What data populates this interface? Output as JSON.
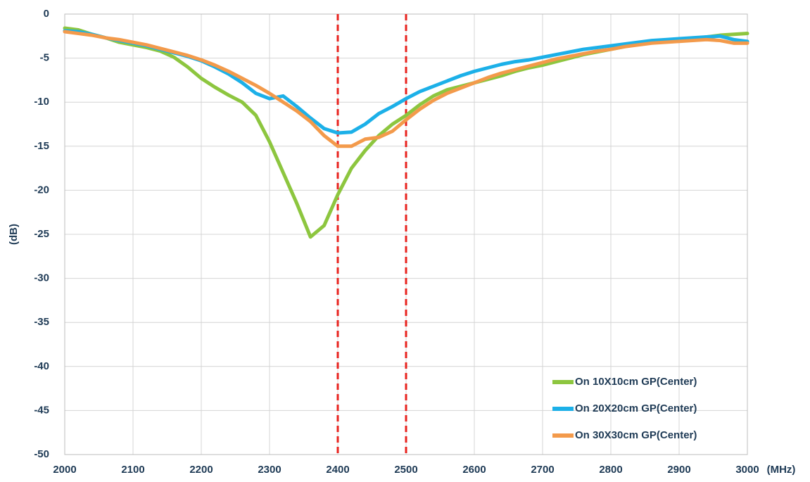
{
  "chart_data": {
    "type": "line",
    "xlabel": "(MHz)",
    "ylabel": "(dB)",
    "x": [
      2000,
      2020,
      2040,
      2060,
      2080,
      2100,
      2120,
      2140,
      2160,
      2180,
      2200,
      2220,
      2240,
      2260,
      2280,
      2300,
      2320,
      2340,
      2360,
      2380,
      2400,
      2420,
      2440,
      2460,
      2480,
      2500,
      2520,
      2540,
      2560,
      2580,
      2600,
      2620,
      2640,
      2660,
      2680,
      2700,
      2720,
      2740,
      2760,
      2780,
      2800,
      2820,
      2840,
      2860,
      2880,
      2900,
      2920,
      2940,
      2960,
      2980,
      3000
    ],
    "series": [
      {
        "name": "On 10X10cm GP(Center)",
        "color": "#8dc63f",
        "values": [
          -1.6,
          -1.8,
          -2.3,
          -2.7,
          -3.2,
          -3.5,
          -3.8,
          -4.2,
          -4.9,
          -6.0,
          -7.3,
          -8.3,
          -9.2,
          -10.0,
          -11.5,
          -14.5,
          -18.0,
          -21.5,
          -25.3,
          -24.0,
          -20.5,
          -17.5,
          -15.5,
          -13.8,
          -12.5,
          -11.5,
          -10.3,
          -9.3,
          -8.6,
          -8.2,
          -7.8,
          -7.4,
          -7.0,
          -6.5,
          -6.1,
          -5.8,
          -5.4,
          -5.0,
          -4.6,
          -4.3,
          -4.0,
          -3.7,
          -3.4,
          -3.2,
          -3.0,
          -2.9,
          -2.8,
          -2.6,
          -2.4,
          -2.3,
          -2.2
        ]
      },
      {
        "name": "On 20X20cm GP(Center)",
        "color": "#1cb0e8",
        "values": [
          -1.9,
          -2.0,
          -2.3,
          -2.7,
          -3.0,
          -3.3,
          -3.6,
          -4.0,
          -4.4,
          -4.8,
          -5.3,
          -6.0,
          -6.8,
          -7.8,
          -9.0,
          -9.6,
          -9.3,
          -10.5,
          -11.8,
          -13.0,
          -13.5,
          -13.4,
          -12.5,
          -11.3,
          -10.5,
          -9.6,
          -8.8,
          -8.2,
          -7.6,
          -7.0,
          -6.5,
          -6.1,
          -5.7,
          -5.4,
          -5.2,
          -4.9,
          -4.6,
          -4.3,
          -4.0,
          -3.8,
          -3.6,
          -3.4,
          -3.2,
          -3.0,
          -2.9,
          -2.8,
          -2.7,
          -2.6,
          -2.5,
          -2.9,
          -3.1
        ]
      },
      {
        "name": "On 30X30cm GP(Center)",
        "color": "#f39a4b",
        "values": [
          -2.0,
          -2.2,
          -2.4,
          -2.7,
          -2.9,
          -3.2,
          -3.5,
          -3.9,
          -4.3,
          -4.7,
          -5.2,
          -5.8,
          -6.5,
          -7.3,
          -8.1,
          -9.0,
          -10.0,
          -11.0,
          -12.2,
          -13.8,
          -15.0,
          -15.0,
          -14.2,
          -14.0,
          -13.3,
          -12.0,
          -10.8,
          -9.8,
          -9.0,
          -8.4,
          -7.8,
          -7.2,
          -6.7,
          -6.3,
          -5.9,
          -5.5,
          -5.1,
          -4.8,
          -4.5,
          -4.2,
          -4.0,
          -3.7,
          -3.5,
          -3.3,
          -3.2,
          -3.1,
          -3.0,
          -2.9,
          -3.0,
          -3.3,
          -3.3
        ]
      }
    ],
    "xlim": [
      2000,
      3000
    ],
    "xticks": [
      2000,
      2100,
      2200,
      2300,
      2400,
      2500,
      2600,
      2700,
      2800,
      2900,
      3000
    ],
    "ylim": [
      -50,
      0
    ],
    "yticks": [
      0,
      -5,
      -10,
      -15,
      -20,
      -25,
      -30,
      -35,
      -40,
      -45,
      -50
    ],
    "grid": true,
    "legend": "lower right",
    "vlines": {
      "values": [
        2400,
        2500
      ],
      "color": "#e8231f"
    }
  }
}
